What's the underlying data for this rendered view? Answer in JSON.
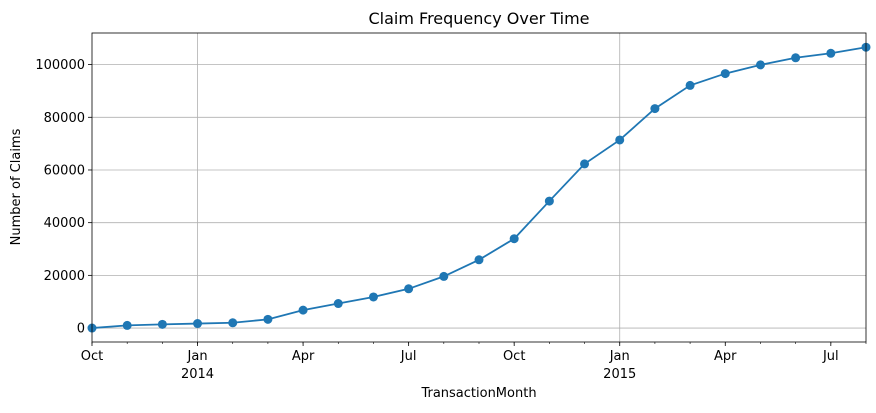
{
  "chart_data": {
    "type": "line",
    "title": "Claim Frequency Over Time",
    "xlabel": "TransactionMonth",
    "ylabel": "Number of Claims",
    "x": [
      "2013-10",
      "2013-11",
      "2013-12",
      "2014-01",
      "2014-02",
      "2014-03",
      "2014-04",
      "2014-05",
      "2014-06",
      "2014-07",
      "2014-08",
      "2014-09",
      "2014-10",
      "2014-11",
      "2014-12",
      "2015-01",
      "2015-02",
      "2015-03",
      "2015-04",
      "2015-05",
      "2015-06",
      "2015-07",
      "2015-08"
    ],
    "series": [
      {
        "values": [
          0,
          1000,
          1400,
          1700,
          2000,
          3300,
          6800,
          9300,
          11800,
          14900,
          19600,
          25900,
          33900,
          48200,
          62300,
          71400,
          83300,
          92100,
          96600,
          99900,
          102600,
          104300,
          106600
        ]
      }
    ],
    "xlim": [
      "2013-10",
      "2015-08"
    ],
    "ylim": [
      -5300,
      112000
    ],
    "y_ticks": [
      "0",
      "20000",
      "40000",
      "60000",
      "80000",
      "100000"
    ],
    "x_ticks": [
      {
        "label": "Oct",
        "year": "",
        "month": "2013-10"
      },
      {
        "label": "Jan",
        "year": "2014",
        "month": "2014-01"
      },
      {
        "label": "Apr",
        "year": "",
        "month": "2014-04"
      },
      {
        "label": "Jul",
        "year": "",
        "month": "2014-07"
      },
      {
        "label": "Oct",
        "year": "",
        "month": "2014-10"
      },
      {
        "label": "Jan",
        "year": "2015",
        "month": "2015-01"
      },
      {
        "label": "Apr",
        "year": "",
        "month": "2015-04"
      },
      {
        "label": "Jul",
        "year": "",
        "month": "2015-07"
      }
    ],
    "grid": true,
    "grid_x_major": [
      "2014-01",
      "2015-01"
    ],
    "line_color": "#1f77b4",
    "grid_color": "#b0b0b0"
  }
}
